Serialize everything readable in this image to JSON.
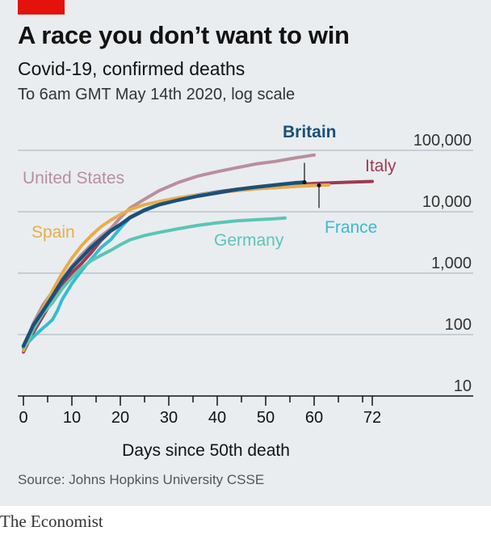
{
  "header": {
    "title": "A race you don’t want to win",
    "subtitle": "Covid-19, confirmed deaths",
    "note": "To 6am GMT May 14th 2020, log scale"
  },
  "footer": {
    "source": "Source: Johns Hopkins University CSSE",
    "brand": "The Economist"
  },
  "colors": {
    "background": "#e9edf0",
    "accent": "#e3120b"
  },
  "chart_data": {
    "type": "line",
    "xlabel": "Days since 50th death",
    "ylabel": "",
    "yscale": "log",
    "xlim": [
      0,
      72
    ],
    "ylim": [
      10,
      100000
    ],
    "x_ticks": [
      {
        "value": 0,
        "label": "0"
      },
      {
        "value": 10,
        "label": "10"
      },
      {
        "value": 20,
        "label": "20"
      },
      {
        "value": 30,
        "label": "30"
      },
      {
        "value": 40,
        "label": "40"
      },
      {
        "value": 50,
        "label": "50"
      },
      {
        "value": 60,
        "label": "60"
      },
      {
        "value": 72,
        "label": "72"
      }
    ],
    "y_ticks": [
      {
        "value": 10,
        "label": "10"
      },
      {
        "value": 100,
        "label": "100"
      },
      {
        "value": 1000,
        "label": "1,000"
      },
      {
        "value": 10000,
        "label": "10,000"
      },
      {
        "value": 100000,
        "label": "100,000"
      }
    ],
    "grid": true,
    "series": [
      {
        "name": "United States",
        "color": "#b88f9c",
        "x": [
          0,
          2,
          4,
          6,
          8,
          10,
          12,
          14,
          16,
          18,
          20,
          22,
          25,
          28,
          32,
          36,
          40,
          44,
          48,
          52,
          56,
          60
        ],
        "y": [
          55,
          150,
          300,
          500,
          800,
          1300,
          2000,
          2900,
          4000,
          5300,
          8000,
          11500,
          16000,
          22000,
          30000,
          38000,
          45000,
          52000,
          60000,
          66000,
          75000,
          84000
        ]
      },
      {
        "name": "Italy",
        "color": "#9c3b52",
        "x": [
          0,
          2,
          4,
          6,
          8,
          10,
          12,
          14,
          16,
          18,
          20,
          22,
          25,
          28,
          32,
          36,
          40,
          44,
          48,
          52,
          56,
          60,
          64,
          68,
          72
        ],
        "y": [
          52,
          107,
          197,
          366,
          631,
          1016,
          1441,
          2158,
          3405,
          4825,
          6077,
          8165,
          10779,
          13155,
          15887,
          18849,
          21067,
          23227,
          25085,
          26384,
          27682,
          28884,
          29684,
          30395,
          31106
        ]
      },
      {
        "name": "France",
        "color": "#37bcd0",
        "x": [
          0,
          2,
          4,
          5,
          6,
          7,
          8,
          10,
          12,
          14,
          16,
          18,
          20,
          22,
          25,
          28,
          31,
          34,
          37,
          40,
          44,
          48,
          52,
          56,
          61
        ],
        "y": [
          61,
          91,
          127,
          148,
          175,
          244,
          372,
          674,
          1100,
          1700,
          2600,
          3500,
          5400,
          8000,
          10900,
          13200,
          15700,
          17900,
          19300,
          20800,
          22200,
          23700,
          24700,
          25900,
          26900
        ]
      },
      {
        "name": "Spain",
        "color": "#e8ac4c",
        "x": [
          0,
          2,
          4,
          6,
          8,
          10,
          12,
          14,
          16,
          18,
          20,
          22,
          25,
          28,
          32,
          36,
          40,
          44,
          48,
          52,
          56,
          60,
          63
        ],
        "y": [
          55,
          120,
          260,
          520,
          1000,
          1750,
          2800,
          4100,
          5700,
          7300,
          9000,
          10900,
          13000,
          14700,
          16900,
          18600,
          20500,
          22000,
          23500,
          24800,
          25800,
          26800,
          27300
        ]
      },
      {
        "name": "Germany",
        "color": "#5bc5b5",
        "x": [
          0,
          2,
          4,
          6,
          8,
          10,
          12,
          14,
          16,
          18,
          20,
          22,
          25,
          28,
          32,
          36,
          40,
          44,
          48,
          52,
          54
        ],
        "y": [
          60,
          120,
          220,
          330,
          560,
          850,
          1210,
          1600,
          1950,
          2350,
          2900,
          3500,
          4100,
          4600,
          5300,
          6000,
          6600,
          7100,
          7400,
          7700,
          7900
        ]
      },
      {
        "name": "Britain",
        "color": "#1b5078",
        "x": [
          0,
          2,
          4,
          6,
          8,
          10,
          12,
          14,
          16,
          18,
          20,
          22,
          25,
          28,
          32,
          36,
          40,
          44,
          48,
          52,
          56,
          58
        ],
        "y": [
          65,
          140,
          240,
          420,
          760,
          1230,
          1790,
          2630,
          3600,
          4900,
          6200,
          8000,
          10600,
          13000,
          15500,
          18000,
          20300,
          23000,
          25200,
          27300,
          29500,
          30200
        ]
      }
    ]
  }
}
